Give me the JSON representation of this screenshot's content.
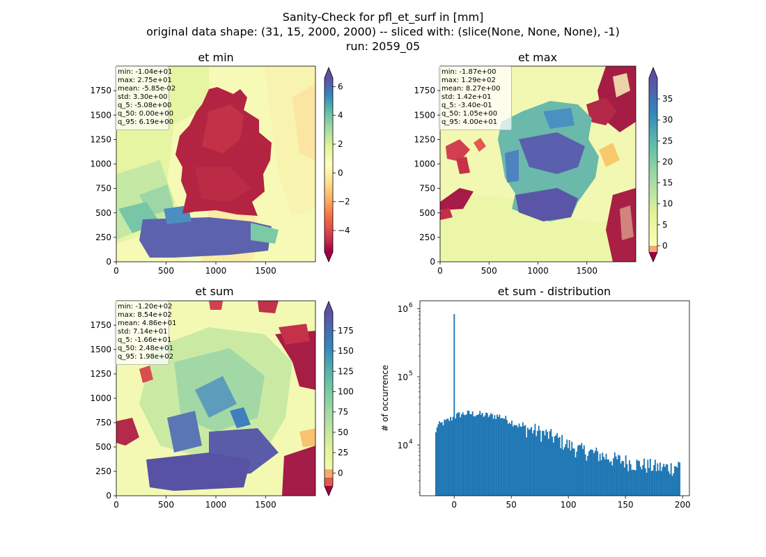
{
  "figure": {
    "title_line1": "Sanity-Check for pfl_et_surf in [mm]",
    "title_line2": "original data shape: (31, 15, 2000, 2000) -- sliced with: (slice(None, None, None), -1)",
    "title_line3": "run: 2059_05"
  },
  "chart_data": [
    {
      "type": "heatmap",
      "title": "et min",
      "xlim": [
        0,
        2000
      ],
      "ylim": [
        0,
        2000
      ],
      "x_ticks": [
        0,
        500,
        1000,
        1500
      ],
      "y_ticks": [
        0,
        250,
        500,
        750,
        1000,
        1250,
        1500,
        1750
      ],
      "colormap": "Spectral",
      "colorbar": {
        "range": [
          -5.5,
          6.6
        ],
        "ticks": [
          -4,
          -2,
          0,
          2,
          4,
          6
        ],
        "tick_labels": [
          "−4",
          "−2",
          "0",
          "2",
          "4",
          "6"
        ],
        "extend": "both"
      },
      "stats": [
        "min: -1.04e+01",
        "max: 2.75e+01",
        "mean: -5.85e-02",
        "std: 3.30e+00",
        "q_5: -5.08e+00",
        "q_50: 0.00e+00",
        "q_95: 6.19e+00"
      ]
    },
    {
      "type": "heatmap",
      "title": "et max",
      "xlim": [
        0,
        2000
      ],
      "ylim": [
        0,
        2000
      ],
      "x_ticks": [
        0,
        500,
        1000,
        1500
      ],
      "y_ticks": [
        0,
        250,
        500,
        750,
        1000,
        1250,
        1500,
        1750
      ],
      "colormap": "Spectral",
      "colorbar": {
        "range": [
          -1.5,
          40
        ],
        "ticks": [
          0,
          5,
          10,
          15,
          20,
          25,
          30,
          35
        ],
        "tick_labels": [
          "0",
          "5",
          "10",
          "15",
          "20",
          "25",
          "30",
          "35"
        ],
        "extend": "both"
      },
      "stats": [
        "min: -1.87e+00",
        "max: 1.29e+02",
        "mean: 8.27e+00",
        "std: 1.42e+01",
        "q_5: -3.40e-01",
        "q_50: 1.05e+00",
        "q_95: 4.00e+01"
      ]
    },
    {
      "type": "heatmap",
      "title": "et sum",
      "xlim": [
        0,
        2000
      ],
      "ylim": [
        0,
        2000
      ],
      "x_ticks": [
        0,
        500,
        1000,
        1500
      ],
      "y_ticks": [
        0,
        250,
        500,
        750,
        1000,
        1250,
        1500,
        1750
      ],
      "colormap": "Spectral",
      "colorbar": {
        "range": [
          -16,
          198
        ],
        "ticks": [
          0,
          25,
          50,
          75,
          100,
          125,
          150,
          175
        ],
        "tick_labels": [
          "0",
          "25",
          "50",
          "75",
          "100",
          "125",
          "150",
          "175"
        ],
        "extend": "both"
      },
      "stats": [
        "min: -1.20e+02",
        "max: 8.54e+02",
        "mean: 4.86e+01",
        "std: 7.14e+01",
        "q_5: -1.66e+01",
        "q_50: 2.48e+01",
        "q_95: 1.98e+02"
      ]
    },
    {
      "type": "bar",
      "title": "et sum - distribution",
      "ylabel": "# of occurrence",
      "yscale": "log",
      "xlim": [
        -30,
        206
      ],
      "ylim": [
        1800,
        1300000
      ],
      "x_ticks": [
        0,
        50,
        100,
        150,
        200
      ],
      "y_ticks": [
        10000,
        100000,
        1000000
      ],
      "y_tick_labels": [
        {
          "base": "10",
          "exp": "4"
        },
        {
          "base": "10",
          "exp": "5"
        },
        {
          "base": "10",
          "exp": "6"
        }
      ],
      "bar_color": "#1f77b4",
      "bin_range": [
        -16.6,
        198
      ],
      "spike": {
        "x": 0,
        "value": 830000
      },
      "profile": [
        [
          -16.6,
          13000
        ],
        [
          -15,
          19000
        ],
        [
          -10,
          21000
        ],
        [
          -5,
          23000
        ],
        [
          0,
          26000
        ],
        [
          5,
          28000
        ],
        [
          10,
          29000
        ],
        [
          20,
          28500
        ],
        [
          30,
          27000
        ],
        [
          40,
          26500
        ],
        [
          50,
          22000
        ],
        [
          60,
          18000
        ],
        [
          70,
          16500
        ],
        [
          80,
          14500
        ],
        [
          90,
          12500
        ],
        [
          100,
          10000
        ],
        [
          110,
          8500
        ],
        [
          120,
          7800
        ],
        [
          130,
          7000
        ],
        [
          140,
          6200
        ],
        [
          150,
          5800
        ],
        [
          160,
          5300
        ],
        [
          170,
          5000
        ],
        [
          180,
          4700
        ],
        [
          190,
          4700
        ],
        [
          198,
          5200
        ]
      ]
    }
  ]
}
